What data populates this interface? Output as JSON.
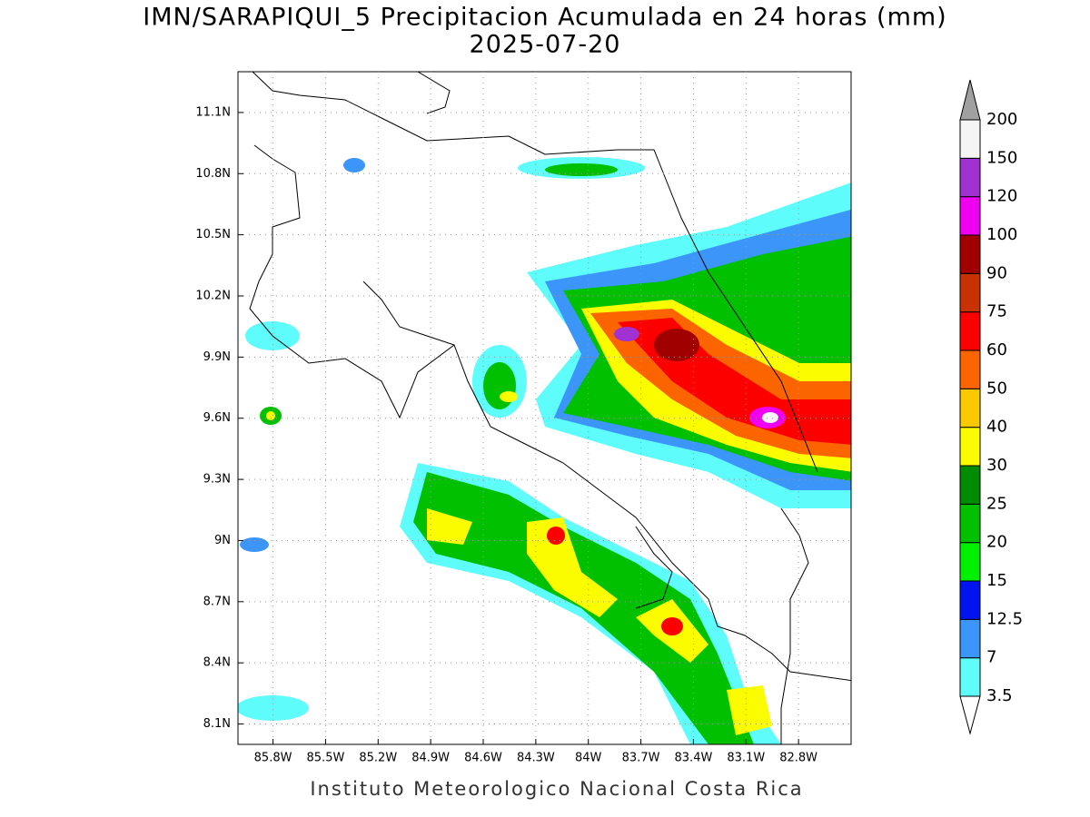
{
  "map": {
    "title": "IMN/SARAPIQUI_5 Precipitacion Acumulada en 24 horas (mm)",
    "subtitle": "2025-07-20",
    "footer": "Instituto Meteorologico Nacional Costa Rica",
    "lon_range": [
      -86.0,
      -82.5
    ],
    "lat_range": [
      8.0,
      11.3
    ],
    "lon_ticks": [
      {
        "value": -85.8,
        "label": "85.8W"
      },
      {
        "value": -85.5,
        "label": "85.5W"
      },
      {
        "value": -85.2,
        "label": "85.2W"
      },
      {
        "value": -84.9,
        "label": "84.9W"
      },
      {
        "value": -84.6,
        "label": "84.6W"
      },
      {
        "value": -84.3,
        "label": "84.3W"
      },
      {
        "value": -84.0,
        "label": "84W"
      },
      {
        "value": -83.7,
        "label": "83.7W"
      },
      {
        "value": -83.4,
        "label": "83.4W"
      },
      {
        "value": -83.1,
        "label": "83.1W"
      },
      {
        "value": -82.8,
        "label": "82.8W"
      }
    ],
    "lat_ticks": [
      {
        "value": 8.1,
        "label": "8.1N"
      },
      {
        "value": 8.4,
        "label": "8.4N"
      },
      {
        "value": 8.7,
        "label": "8.7N"
      },
      {
        "value": 9.0,
        "label": "9N"
      },
      {
        "value": 9.3,
        "label": "9.3N"
      },
      {
        "value": 9.6,
        "label": "9.6N"
      },
      {
        "value": 9.9,
        "label": "9.9N"
      },
      {
        "value": 10.2,
        "label": "10.2N"
      },
      {
        "value": 10.5,
        "label": "10.5N"
      },
      {
        "value": 10.8,
        "label": "10.8N"
      },
      {
        "value": 11.1,
        "label": "11.1N"
      }
    ],
    "grid": true,
    "colorbar": {
      "levels": [
        3.5,
        7,
        12.5,
        15,
        20,
        25,
        30,
        40,
        50,
        60,
        75,
        90,
        100,
        120,
        150,
        200
      ],
      "colors": [
        "#5ffcfc",
        "#3c96fa",
        "#0014f0",
        "#00f000",
        "#00c000",
        "#008c00",
        "#fcfc00",
        "#fcc800",
        "#fc6400",
        "#fc0000",
        "#c83200",
        "#a00000",
        "#f000f0",
        "#a032d2",
        "#f5f5f5"
      ],
      "under_color": "#ffffff",
      "over_color": "#a0a0a0"
    }
  }
}
